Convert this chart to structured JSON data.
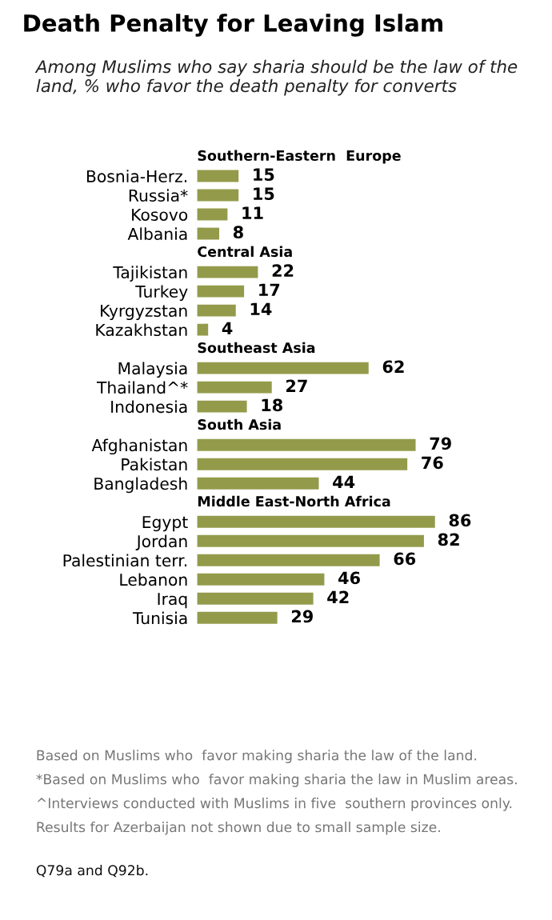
{
  "chart_data": {
    "type": "bar",
    "orientation": "horizontal",
    "title": "Death Penalty for Leaving Islam",
    "subtitle": "Among Muslims who say sharia should be the law of the land, % who favor the death penalty for converts",
    "categories": [
      "Southern-Eastern  Europe",
      "Bosnia-Herz.",
      "Russia*",
      "Kosovo",
      "Albania",
      "Central Asia",
      "Tajikistan",
      "Turkey",
      "Kyrgyzstan",
      "Kazakhstan",
      "Southeast Asia",
      "Malaysia",
      "Thailand^*",
      "Indonesia",
      "South Asia",
      "Afghanistan",
      "Pakistan",
      "Bangladesh",
      "Middle East-North Africa",
      "Egypt",
      "Jordan",
      "Palestinian terr.",
      "Lebanon",
      "Iraq",
      "Tunisia"
    ],
    "values": [
      null,
      15,
      15,
      11,
      8,
      null,
      22,
      17,
      14,
      4,
      null,
      62,
      27,
      18,
      null,
      79,
      76,
      44,
      null,
      86,
      82,
      66,
      46,
      42,
      29
    ],
    "color": "#939b4b",
    "data_labels": true,
    "grid": false,
    "legend": false,
    "annotations": [
      "Based on Muslims who  favor making sharia the law of the land.",
      "*Based on Muslims who  favor making sharia the law in Muslim areas.",
      "^Interviews conducted with Muslims in five  southern provinces only.",
      "Results for Azerbaijan not shown due to small sample size.",
      "Q79a and Q92b."
    ]
  }
}
